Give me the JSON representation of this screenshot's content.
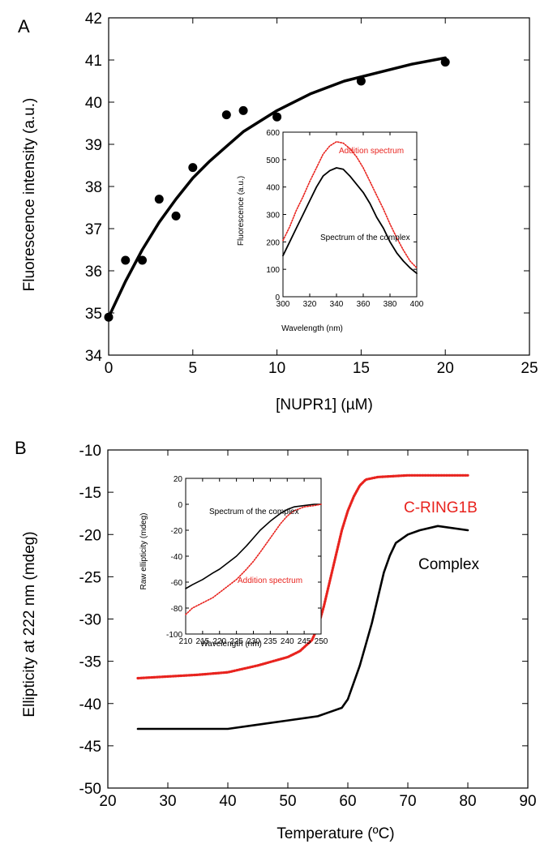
{
  "chart_data": [
    {
      "panel": "A",
      "type": "scatter",
      "xlabel": "[NUPR1] (µM)",
      "ylabel": "Fluorescence intensity (a.u.)",
      "xlim": [
        0,
        25
      ],
      "ylim": [
        34,
        42
      ],
      "xticks": [
        "0",
        "5",
        "10",
        "15",
        "20",
        "25"
      ],
      "yticks": [
        "34",
        "35",
        "36",
        "37",
        "38",
        "39",
        "40",
        "41",
        "42"
      ],
      "series": [
        {
          "kind": "points",
          "color": "#000000",
          "points": [
            [
              0,
              34.9
            ],
            [
              1,
              36.25
            ],
            [
              2,
              36.25
            ],
            [
              3,
              37.7
            ],
            [
              4,
              37.3
            ],
            [
              5,
              38.45
            ],
            [
              7,
              39.7
            ],
            [
              8,
              39.8
            ],
            [
              10,
              39.65
            ],
            [
              15,
              40.5
            ],
            [
              20,
              40.95
            ]
          ]
        },
        {
          "kind": "fit",
          "color": "#000000",
          "points": [
            [
              0,
              34.9
            ],
            [
              1,
              35.75
            ],
            [
              2,
              36.5
            ],
            [
              3,
              37.15
            ],
            [
              4,
              37.7
            ],
            [
              5,
              38.2
            ],
            [
              6,
              38.6
            ],
            [
              7,
              38.95
            ],
            [
              8,
              39.3
            ],
            [
              9,
              39.55
            ],
            [
              10,
              39.8
            ],
            [
              12,
              40.2
            ],
            [
              14,
              40.5
            ],
            [
              16,
              40.7
            ],
            [
              18,
              40.9
            ],
            [
              20,
              41.05
            ]
          ]
        }
      ],
      "inset": {
        "type": "line",
        "xlabel": "Wavelength (nm)",
        "ylabel": "Fluorescence (a.u.)",
        "xlim": [
          300,
          400
        ],
        "ylim": [
          0,
          600
        ],
        "xticks": [
          "300",
          "320",
          "340",
          "360",
          "380",
          "400"
        ],
        "yticks": [
          "0",
          "100",
          "200",
          "300",
          "400",
          "500",
          "600"
        ],
        "series": [
          {
            "name": "Addition spectrum",
            "color": "#e8231e",
            "style": "dotted",
            "x": [
              300,
              305,
              310,
              315,
              320,
              325,
              330,
              335,
              340,
              345,
              350,
              355,
              360,
              365,
              370,
              375,
              380,
              385,
              390,
              395,
              400
            ],
            "y": [
              205,
              255,
              315,
              365,
              420,
              470,
              520,
              550,
              565,
              560,
              540,
              510,
              470,
              420,
              370,
              320,
              265,
              215,
              170,
              130,
              105
            ]
          },
          {
            "name": "Spectrum of the complex",
            "color": "#000000",
            "style": "solid",
            "x": [
              300,
              305,
              310,
              315,
              320,
              325,
              330,
              335,
              340,
              345,
              350,
              355,
              360,
              365,
              370,
              375,
              380,
              385,
              390,
              395,
              400
            ],
            "y": [
              150,
              200,
              250,
              300,
              350,
              400,
              440,
              460,
              470,
              465,
              440,
              410,
              380,
              340,
              290,
              250,
              200,
              160,
              130,
              105,
              85
            ]
          }
        ]
      }
    },
    {
      "panel": "B",
      "type": "line",
      "xlabel": "Temperature (ºC)",
      "ylabel": "Ellipticity at 222 nm (mdeg)",
      "xlim": [
        20,
        90
      ],
      "ylim": [
        -50,
        -10
      ],
      "xticks": [
        "20",
        "30",
        "40",
        "50",
        "60",
        "70",
        "80",
        "90"
      ],
      "yticks": [
        "-50",
        "-45",
        "-40",
        "-35",
        "-30",
        "-25",
        "-20",
        "-15",
        "-10"
      ],
      "series": [
        {
          "name": "C-RING1B",
          "color": "#e8231e",
          "style": "dotted",
          "x": [
            25,
            30,
            35,
            40,
            45,
            50,
            52,
            54,
            55,
            56,
            57,
            58,
            59,
            60,
            61,
            62,
            63,
            65,
            70,
            75,
            80
          ],
          "y": [
            -37,
            -36.8,
            -36.6,
            -36.3,
            -35.5,
            -34.5,
            -33.8,
            -32.5,
            -31,
            -28.5,
            -25.5,
            -22.5,
            -19.5,
            -17.2,
            -15.5,
            -14.2,
            -13.5,
            -13.2,
            -13,
            -13,
            -13
          ]
        },
        {
          "name": "Complex",
          "color": "#000000",
          "style": "solid",
          "x": [
            25,
            30,
            35,
            40,
            45,
            50,
            55,
            57,
            59,
            60,
            61,
            62,
            63,
            64,
            65,
            66,
            67,
            68,
            70,
            72,
            75,
            80
          ],
          "y": [
            -43,
            -43,
            -43,
            -43,
            -42.5,
            -42,
            -41.5,
            -41,
            -40.5,
            -39.5,
            -37.5,
            -35.5,
            -33,
            -30.5,
            -27.5,
            -24.5,
            -22.5,
            -21,
            -20,
            -19.5,
            -19,
            -19.5
          ]
        }
      ],
      "inset": {
        "type": "line",
        "xlabel": "Wavelength (nm)",
        "ylabel": "Raw ellipticity (mdeg)",
        "xlim": [
          210,
          250
        ],
        "ylim": [
          -100,
          20
        ],
        "xticks": [
          "210",
          "215",
          "220",
          "225",
          "230",
          "235",
          "240",
          "245",
          "250"
        ],
        "yticks": [
          "-100",
          "-80",
          "-60",
          "-40",
          "-20",
          "0",
          "20"
        ],
        "series": [
          {
            "name": "Spectrum of the complex",
            "color": "#000000",
            "style": "solid",
            "x": [
              210,
              212,
              215,
              218,
              220,
              222,
              225,
              228,
              230,
              232,
              235,
              238,
              240,
              242,
              245,
              248,
              250
            ],
            "y": [
              -65,
              -62,
              -58,
              -53,
              -50,
              -46,
              -40,
              -32,
              -26,
              -20,
              -13,
              -7,
              -4,
              -2,
              -1,
              0,
              0
            ]
          },
          {
            "name": "Addition spectrum",
            "color": "#e8231e",
            "style": "dotted",
            "x": [
              210,
              212,
              215,
              218,
              220,
              222,
              225,
              228,
              230,
              232,
              235,
              238,
              240,
              242,
              245,
              248,
              250
            ],
            "y": [
              -85,
              -80,
              -76,
              -72,
              -68,
              -64,
              -58,
              -50,
              -44,
              -37,
              -26,
              -15,
              -9,
              -5,
              -2,
              -1,
              0
            ]
          }
        ]
      }
    }
  ]
}
